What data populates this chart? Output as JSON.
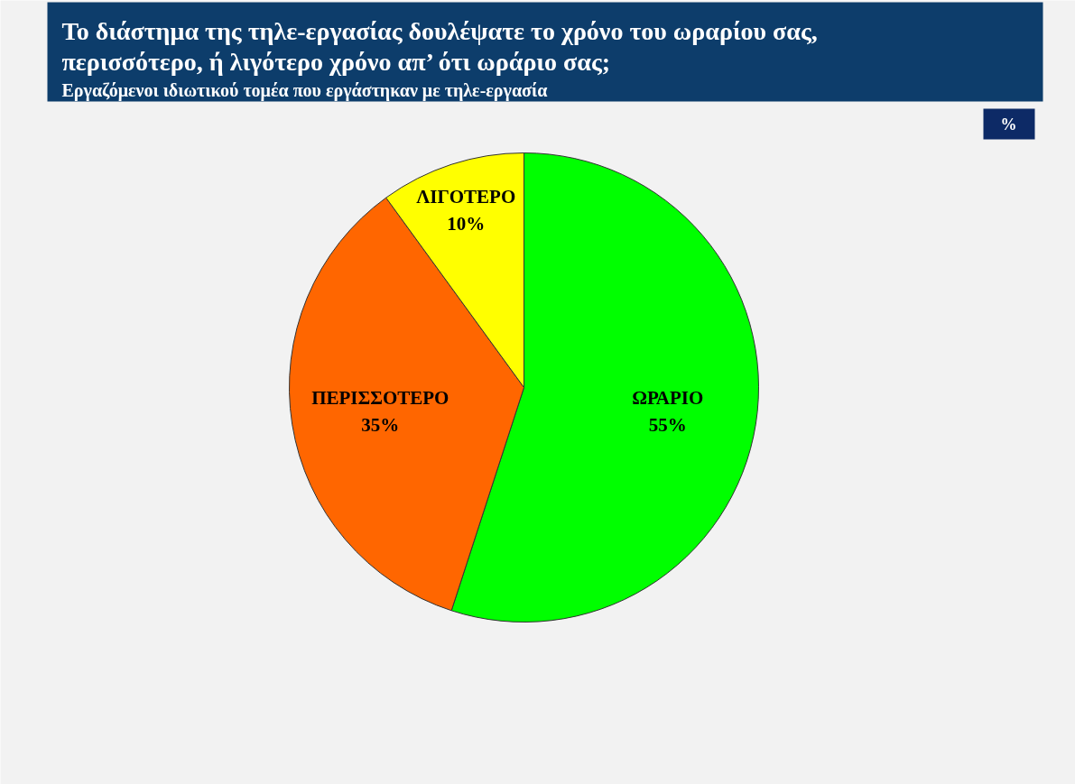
{
  "chart_data": {
    "type": "pie",
    "title": "Το διάστημα της τηλε-εργασίας δουλέψατε το χρόνο του ωραρίου σας, περισσότερο, ή λιγότερο χρόνο απ’ ότι ωράριο σας;",
    "subtitle": "Εργαζόμενοι ιδιωτικού τομέα που εργάστηκαν με τηλε-εργασία",
    "annotations": [
      "%"
    ],
    "categories": [
      "ΩΡΑΡΙΟ",
      "ΠΕΡΙΣΣΟΤΕΡΟ",
      "ΛΙΓΟΤΕΡΟ"
    ],
    "values": [
      55,
      35,
      10
    ],
    "colors": [
      "#00ff00",
      "#ff6600",
      "#ffff00"
    ],
    "value_labels": [
      "55%",
      "35%",
      "10%"
    ]
  }
}
